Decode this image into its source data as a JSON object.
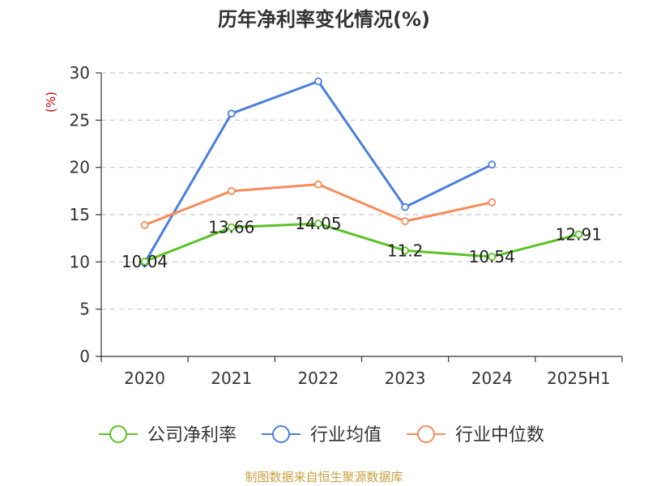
{
  "chart_data": {
    "type": "line",
    "title": "历年净利率变化情况(%)",
    "ylabel": "(%)",
    "categories": [
      "2020",
      "2021",
      "2022",
      "2023",
      "2024",
      "2025H1"
    ],
    "ylim": [
      0,
      30
    ],
    "yticks": [
      "0",
      "5",
      "10",
      "15",
      "20",
      "25",
      "30"
    ],
    "grid": true,
    "legend_position": "bottom",
    "series": [
      {
        "name": "公司净利率",
        "color": "#5bc225",
        "values": [
          10.04,
          13.66,
          14.05,
          11.2,
          10.54,
          12.91
        ],
        "labels": [
          "10.04",
          "13.66",
          "14.05",
          "11.2",
          "10.54",
          "12.91"
        ]
      },
      {
        "name": "行业均值",
        "color": "#4a7fdc",
        "values": [
          9.9,
          25.7,
          29.1,
          15.8,
          20.3,
          null
        ]
      },
      {
        "name": "行业中位数",
        "color": "#f58c5a",
        "values": [
          13.9,
          17.5,
          18.2,
          14.3,
          16.3,
          null
        ]
      }
    ],
    "source": "制图数据来自恒生聚源数据库"
  }
}
